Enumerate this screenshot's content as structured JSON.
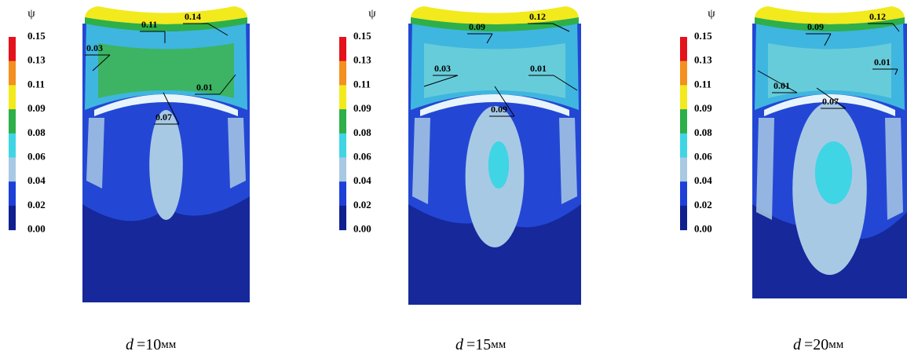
{
  "panels": [
    {
      "legend_title": "ψ",
      "legend": [
        {
          "label": "0.15",
          "color": "#e3121b"
        },
        {
          "label": "0.13",
          "color": "#f39020"
        },
        {
          "label": "0.11",
          "color": "#f2ea1c"
        },
        {
          "label": "0.09",
          "color": "#2eaf49"
        },
        {
          "label": "0.08",
          "color": "#3fd5e5"
        },
        {
          "label": "0.06",
          "color": "#a8c9e4"
        },
        {
          "label": "0.04",
          "color": "#1d40d8"
        },
        {
          "label": "0.02",
          "color": "#10208f"
        },
        {
          "label": "0.00",
          "color": null
        }
      ],
      "annotations": [
        "0.11",
        "0.14",
        "0.03",
        "0.01",
        "0.07"
      ],
      "caption": {
        "symbol": "d",
        "value": "=10",
        "unit": "мм"
      }
    },
    {
      "legend_title": "ψ",
      "legend": [
        {
          "label": "0.15",
          "color": "#e3121b"
        },
        {
          "label": "0.13",
          "color": "#f39020"
        },
        {
          "label": "0.11",
          "color": "#f2ea1c"
        },
        {
          "label": "0.09",
          "color": "#2eaf49"
        },
        {
          "label": "0.08",
          "color": "#3fd5e5"
        },
        {
          "label": "0.06",
          "color": "#a8c9e4"
        },
        {
          "label": "0.04",
          "color": "#1d40d8"
        },
        {
          "label": "0.02",
          "color": "#10208f"
        },
        {
          "label": "0.00",
          "color": null
        }
      ],
      "annotations": [
        "0.09",
        "0.12",
        "0.03",
        "0.01",
        "0.09"
      ],
      "caption": {
        "symbol": "d",
        "value": "=15",
        "unit": "мм"
      }
    },
    {
      "legend_title": "ψ",
      "legend": [
        {
          "label": "0.15",
          "color": "#e3121b"
        },
        {
          "label": "0.13",
          "color": "#f39020"
        },
        {
          "label": "0.11",
          "color": "#f2ea1c"
        },
        {
          "label": "0.09",
          "color": "#2eaf49"
        },
        {
          "label": "0.08",
          "color": "#3fd5e5"
        },
        {
          "label": "0.06",
          "color": "#a8c9e4"
        },
        {
          "label": "0.04",
          "color": "#1d40d8"
        },
        {
          "label": "0.02",
          "color": "#10208f"
        },
        {
          "label": "0.00",
          "color": null
        }
      ],
      "annotations": [
        "0.09",
        "0.12",
        "0.01",
        "0.01",
        "0.07"
      ],
      "caption": {
        "symbol": "d",
        "value": "=20",
        "unit": "мм"
      }
    }
  ]
}
